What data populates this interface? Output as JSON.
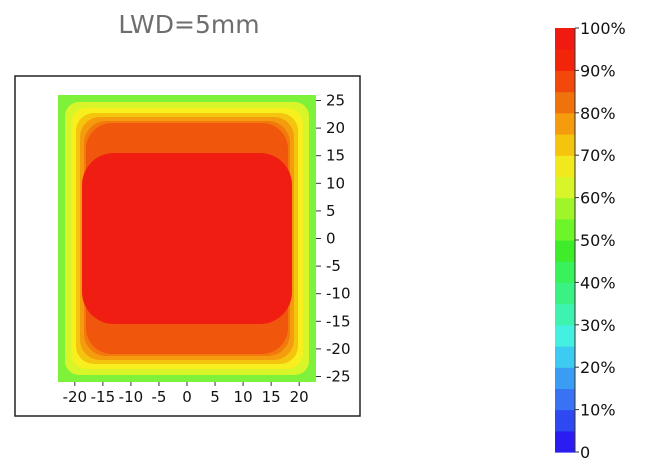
{
  "chart_data": {
    "type": "heatmap",
    "title": "LWD=5mm",
    "x_ticks": [
      -20,
      -15,
      -10,
      -5,
      0,
      5,
      10,
      15,
      20
    ],
    "y_ticks": [
      25,
      20,
      15,
      10,
      5,
      0,
      -5,
      -10,
      -15,
      -20,
      -25
    ],
    "xlim": [
      -23,
      23
    ],
    "ylim": [
      -26,
      26
    ],
    "colorbar": {
      "range": [
        0,
        100
      ],
      "tick_labels": [
        "100%",
        "90%",
        "80%",
        "70%",
        "60%",
        "50%",
        "40%",
        "30%",
        "20%",
        "10%",
        "0"
      ],
      "colors_bottom_to_top": [
        "#2b1df2",
        "#2e48f2",
        "#3773f3",
        "#3a9cf2",
        "#3ecbf2",
        "#44f0e2",
        "#3ef2b0",
        "#3af284",
        "#37f25a",
        "#3eec2a",
        "#6ef52a",
        "#a0f52a",
        "#d8f52a",
        "#f2e81e",
        "#f5c40e",
        "#f59c0e",
        "#f0720c",
        "#f2480c",
        "#f2240a",
        "#f01a10"
      ]
    },
    "contour_levels_outer_to_inner": [
      {
        "value_percent": 60,
        "color": "#7ef23a"
      },
      {
        "value_percent": 70,
        "color": "#d8f52a"
      },
      {
        "value_percent": 75,
        "color": "#f7f01e"
      },
      {
        "value_percent": 80,
        "color": "#f5c40e"
      },
      {
        "value_percent": 85,
        "color": "#f59c0e"
      },
      {
        "value_percent": 90,
        "color": "#f27a0c"
      },
      {
        "value_percent": 95,
        "color": "#f0560c"
      },
      {
        "value_percent": 100,
        "color": "#f01e12"
      }
    ]
  }
}
